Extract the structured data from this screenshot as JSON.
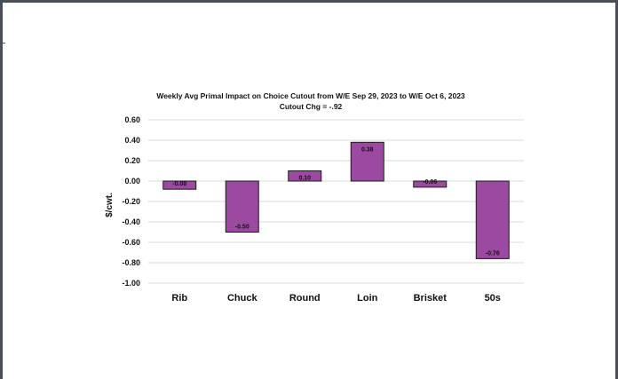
{
  "chart_data": {
    "type": "bar",
    "title": "Weekly Avg Primal Impact on Choice Cutout from W/E Sep 29, 2023 to W/E Oct 6, 2023",
    "subtitle": "Cutout Chg = -.92",
    "xlabel": "",
    "ylabel": "$/cwt.",
    "categories": [
      "Rib",
      "Chuck",
      "Round",
      "Loin",
      "Brisket",
      "50s"
    ],
    "values": [
      -0.08,
      -0.5,
      0.1,
      0.38,
      -0.06,
      -0.76
    ],
    "value_labels": [
      "-0.08",
      "-0.50",
      "0.10",
      "0.38",
      "-0.06",
      "-0.76"
    ],
    "ylim": [
      -1.0,
      0.6
    ],
    "yticks": [
      "0.60",
      "0.40",
      "0.20",
      "0.00",
      "-0.20",
      "-0.40",
      "-0.60",
      "-0.80",
      "-1.00"
    ],
    "ytick_values": [
      0.6,
      0.4,
      0.2,
      0.0,
      -0.2,
      -0.4,
      -0.6,
      -0.8,
      -1.0
    ],
    "grid": true,
    "legend": "none",
    "colors": {
      "bar": "#9c4aa1",
      "grid": "#d9d9d9",
      "bar_edge": "#1a1a1a"
    }
  }
}
